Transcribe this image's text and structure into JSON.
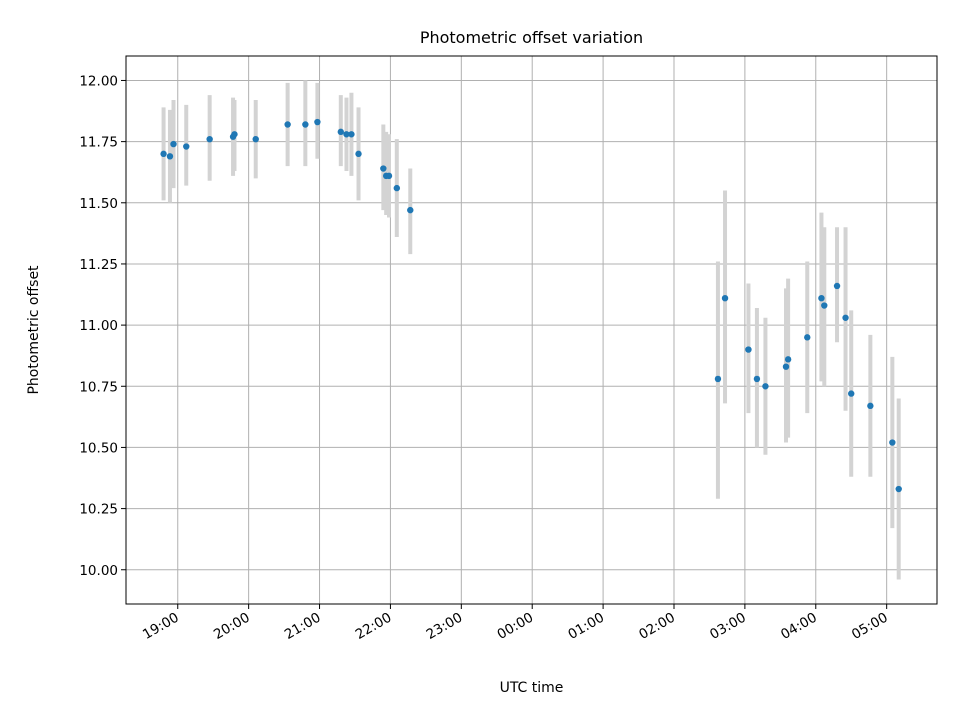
{
  "chart_data": {
    "type": "scatter",
    "title": "Photometric offset variation",
    "xlabel": "UTC time",
    "ylabel": "Photometric offset",
    "x_ticks": [
      "19:00",
      "20:00",
      "21:00",
      "22:00",
      "23:00",
      "00:00",
      "01:00",
      "02:00",
      "03:00",
      "04:00",
      "05:00"
    ],
    "x_tick_hours": [
      19,
      20,
      21,
      22,
      23,
      24,
      25,
      26,
      27,
      28,
      29
    ],
    "xlim_hours": [
      18.27,
      29.71
    ],
    "y_ticks": [
      "10.00",
      "10.25",
      "10.50",
      "10.75",
      "11.00",
      "11.25",
      "11.50",
      "11.75",
      "12.00"
    ],
    "y_tick_values": [
      10.0,
      10.25,
      10.5,
      10.75,
      11.0,
      11.25,
      11.5,
      11.75,
      12.0
    ],
    "ylim": [
      9.86,
      12.1
    ],
    "grid": true,
    "marker_color": "#1f77b4",
    "errorbar_color": "#d3d3d3",
    "points": [
      {
        "x": 18.8,
        "y": 11.7,
        "lo": 11.51,
        "hi": 11.89
      },
      {
        "x": 18.89,
        "y": 11.69,
        "lo": 11.5,
        "hi": 11.88
      },
      {
        "x": 18.94,
        "y": 11.74,
        "lo": 11.56,
        "hi": 11.92
      },
      {
        "x": 19.12,
        "y": 11.73,
        "lo": 11.57,
        "hi": 11.9
      },
      {
        "x": 19.45,
        "y": 11.76,
        "lo": 11.59,
        "hi": 11.94
      },
      {
        "x": 19.78,
        "y": 11.77,
        "lo": 11.61,
        "hi": 11.93
      },
      {
        "x": 19.8,
        "y": 11.78,
        "lo": 11.63,
        "hi": 11.92
      },
      {
        "x": 20.1,
        "y": 11.76,
        "lo": 11.6,
        "hi": 11.92
      },
      {
        "x": 20.55,
        "y": 11.82,
        "lo": 11.65,
        "hi": 11.99
      },
      {
        "x": 20.8,
        "y": 11.82,
        "lo": 11.65,
        "hi": 12.0
      },
      {
        "x": 20.97,
        "y": 11.83,
        "lo": 11.68,
        "hi": 11.99
      },
      {
        "x": 21.3,
        "y": 11.79,
        "lo": 11.65,
        "hi": 11.94
      },
      {
        "x": 21.38,
        "y": 11.78,
        "lo": 11.63,
        "hi": 11.93
      },
      {
        "x": 21.45,
        "y": 11.78,
        "lo": 11.61,
        "hi": 11.95
      },
      {
        "x": 21.55,
        "y": 11.7,
        "lo": 11.51,
        "hi": 11.89
      },
      {
        "x": 21.9,
        "y": 11.64,
        "lo": 11.47,
        "hi": 11.82
      },
      {
        "x": 21.94,
        "y": 11.61,
        "lo": 11.45,
        "hi": 11.79
      },
      {
        "x": 21.98,
        "y": 11.61,
        "lo": 11.44,
        "hi": 11.78
      },
      {
        "x": 22.09,
        "y": 11.56,
        "lo": 11.36,
        "hi": 11.76
      },
      {
        "x": 22.28,
        "y": 11.47,
        "lo": 11.29,
        "hi": 11.64
      },
      {
        "x": 26.62,
        "y": 10.78,
        "lo": 10.29,
        "hi": 11.26
      },
      {
        "x": 26.72,
        "y": 11.11,
        "lo": 10.68,
        "hi": 11.55
      },
      {
        "x": 27.05,
        "y": 10.9,
        "lo": 10.64,
        "hi": 11.17
      },
      {
        "x": 27.17,
        "y": 10.78,
        "lo": 10.5,
        "hi": 11.07
      },
      {
        "x": 27.29,
        "y": 10.75,
        "lo": 10.47,
        "hi": 11.03
      },
      {
        "x": 27.58,
        "y": 10.83,
        "lo": 10.52,
        "hi": 11.15
      },
      {
        "x": 27.61,
        "y": 10.86,
        "lo": 10.54,
        "hi": 11.19
      },
      {
        "x": 27.88,
        "y": 10.95,
        "lo": 10.64,
        "hi": 11.26
      },
      {
        "x": 28.08,
        "y": 11.11,
        "lo": 10.77,
        "hi": 11.46
      },
      {
        "x": 28.12,
        "y": 11.08,
        "lo": 10.75,
        "hi": 11.4
      },
      {
        "x": 28.3,
        "y": 11.16,
        "lo": 10.93,
        "hi": 11.4
      },
      {
        "x": 28.42,
        "y": 11.03,
        "lo": 10.65,
        "hi": 11.4
      },
      {
        "x": 28.5,
        "y": 10.72,
        "lo": 10.38,
        "hi": 11.06
      },
      {
        "x": 28.77,
        "y": 10.67,
        "lo": 10.38,
        "hi": 10.96
      },
      {
        "x": 29.08,
        "y": 10.52,
        "lo": 10.17,
        "hi": 10.87
      },
      {
        "x": 29.17,
        "y": 10.33,
        "lo": 9.96,
        "hi": 10.7
      }
    ]
  }
}
